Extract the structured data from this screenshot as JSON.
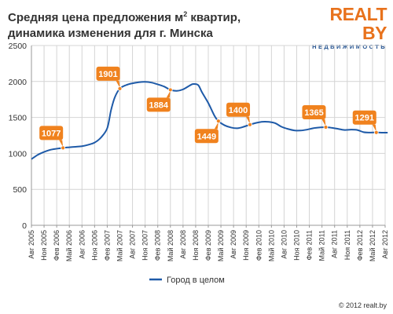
{
  "title": {
    "line1": "Средняя цена предложения м",
    "line1_sup": "2",
    "line1_rest": " квартир,",
    "line2": "динамика изменения для г. Минска"
  },
  "logo": {
    "main": "REALT BY",
    "sub": "НЕДВИЖИМОСТЬ"
  },
  "copyright": "© 2012 realt.by",
  "colors": {
    "line": "#1e5aa8",
    "callout": "#f0821e",
    "grid": "#d4d4d4"
  },
  "chart_data": {
    "type": "line",
    "ylim": [
      0,
      2500
    ],
    "yticks": [
      0,
      500,
      1000,
      1500,
      2000,
      2500
    ],
    "grid": true,
    "legend_position": "bottom-center",
    "categories": [
      "Авг 2005",
      "Ноя 2005",
      "Фев 2006",
      "Май 2006",
      "Авг 2006",
      "Ноя 2006",
      "Фев 2007",
      "Май 2007",
      "Авг 2007",
      "Ноя 2007",
      "Фев 2008",
      "Май 2008",
      "Авг 2008",
      "Ноя 2008",
      "Фев 2009",
      "Май 2009",
      "Авг 2009",
      "Ноя 2009",
      "Фев 2010",
      "Май 2010",
      "Авг 2010",
      "Ноя 2010",
      "Фев 2011",
      "Май 2011",
      "Авг 2011",
      "Ноя 2011",
      "Фев 2012",
      "Май 2012",
      "Авг 2012"
    ],
    "series": [
      {
        "name": "Город в целом",
        "points": [
          [
            0,
            920
          ],
          [
            0.5,
            980
          ],
          [
            1,
            1020
          ],
          [
            1.5,
            1050
          ],
          [
            2,
            1065
          ],
          [
            2.5,
            1077
          ],
          [
            3,
            1085
          ],
          [
            3.5,
            1092
          ],
          [
            4,
            1100
          ],
          [
            4.5,
            1120
          ],
          [
            5,
            1150
          ],
          [
            5.5,
            1220
          ],
          [
            6,
            1350
          ],
          [
            6.3,
            1600
          ],
          [
            6.6,
            1780
          ],
          [
            7,
            1901
          ],
          [
            7.5,
            1950
          ],
          [
            8,
            1975
          ],
          [
            8.5,
            1990
          ],
          [
            9,
            1995
          ],
          [
            9.5,
            1985
          ],
          [
            10,
            1960
          ],
          [
            10.5,
            1930
          ],
          [
            11,
            1884
          ],
          [
            11.5,
            1870
          ],
          [
            12,
            1890
          ],
          [
            12.5,
            1940
          ],
          [
            12.8,
            1965
          ],
          [
            13.2,
            1950
          ],
          [
            13.5,
            1850
          ],
          [
            14,
            1700
          ],
          [
            14.5,
            1520
          ],
          [
            14.8,
            1449
          ],
          [
            15.3,
            1390
          ],
          [
            15.8,
            1360
          ],
          [
            16.3,
            1350
          ],
          [
            16.8,
            1370
          ],
          [
            17.3,
            1400
          ],
          [
            17.8,
            1425
          ],
          [
            18.3,
            1440
          ],
          [
            18.8,
            1438
          ],
          [
            19.3,
            1420
          ],
          [
            19.8,
            1370
          ],
          [
            20.3,
            1340
          ],
          [
            20.8,
            1320
          ],
          [
            21.3,
            1318
          ],
          [
            21.8,
            1330
          ],
          [
            22.3,
            1350
          ],
          [
            22.8,
            1360
          ],
          [
            23.3,
            1365
          ],
          [
            23.8,
            1355
          ],
          [
            24.3,
            1340
          ],
          [
            24.8,
            1325
          ],
          [
            25.3,
            1330
          ],
          [
            25.8,
            1325
          ],
          [
            26.3,
            1295
          ],
          [
            26.8,
            1290
          ],
          [
            27.3,
            1291
          ],
          [
            27.8,
            1288
          ],
          [
            28.2,
            1288
          ]
        ]
      }
    ],
    "annotations": [
      {
        "label": "1077",
        "x": 2.5,
        "y": 1077,
        "placement": "above"
      },
      {
        "label": "1901",
        "x": 7,
        "y": 1901,
        "placement": "above"
      },
      {
        "label": "1884",
        "x": 11,
        "y": 1884,
        "placement": "below"
      },
      {
        "label": "1449",
        "x": 14.8,
        "y": 1449,
        "placement": "below"
      },
      {
        "label": "1400",
        "x": 17.3,
        "y": 1400,
        "placement": "above"
      },
      {
        "label": "1365",
        "x": 23.3,
        "y": 1365,
        "placement": "above"
      },
      {
        "label": "1291",
        "x": 27.3,
        "y": 1291,
        "placement": "above"
      }
    ]
  }
}
